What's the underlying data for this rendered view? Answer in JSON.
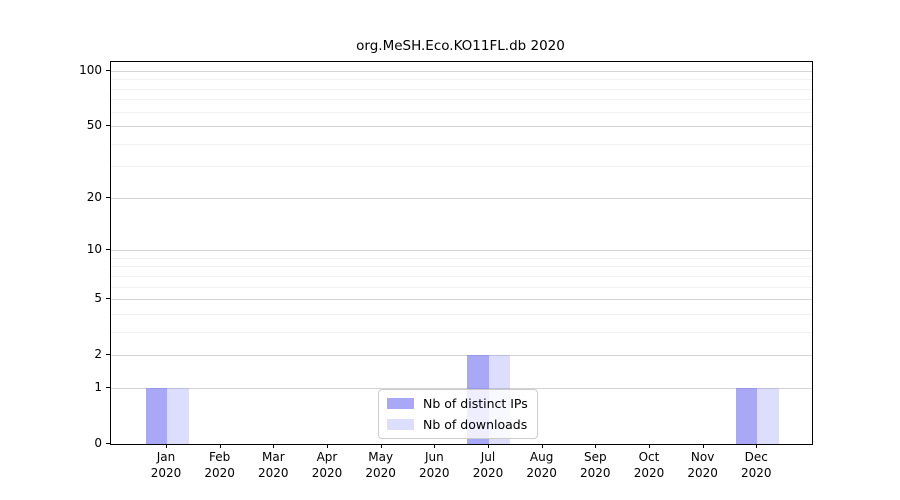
{
  "chart_data": {
    "type": "bar",
    "title": "org.MeSH.Eco.KO11FL.db 2020",
    "categories": [
      "Jan",
      "Feb",
      "Mar",
      "Apr",
      "May",
      "Jun",
      "Jul",
      "Aug",
      "Sep",
      "Oct",
      "Nov",
      "Dec"
    ],
    "category_year": "2020",
    "series": [
      {
        "name": "Nb of distinct IPs",
        "values": [
          1,
          0,
          0,
          0,
          0,
          0,
          2,
          0,
          0,
          0,
          0,
          1
        ],
        "color": "rgba(121,121,242,0.65)"
      },
      {
        "name": "Nb of downloads",
        "values": [
          1,
          0,
          0,
          0,
          0,
          0,
          2,
          0,
          0,
          0,
          0,
          1
        ],
        "color": "rgba(121,121,242,0.25)"
      }
    ],
    "xlabel": "",
    "ylabel": "",
    "y_scale": "log1p",
    "y_ticks": [
      0,
      1,
      2,
      5,
      10,
      20,
      50,
      100
    ],
    "y_minor_gridlines": [
      3,
      4,
      6,
      7,
      8,
      9,
      30,
      40,
      60,
      70,
      80,
      90
    ],
    "ylim": [
      0,
      112
    ],
    "grid": true,
    "legend_position": "lower center",
    "colors": {
      "major_grid": "#d4d4d4",
      "minor_grid": "#f2f2f2",
      "spine": "#000000",
      "text": "#000000"
    }
  }
}
